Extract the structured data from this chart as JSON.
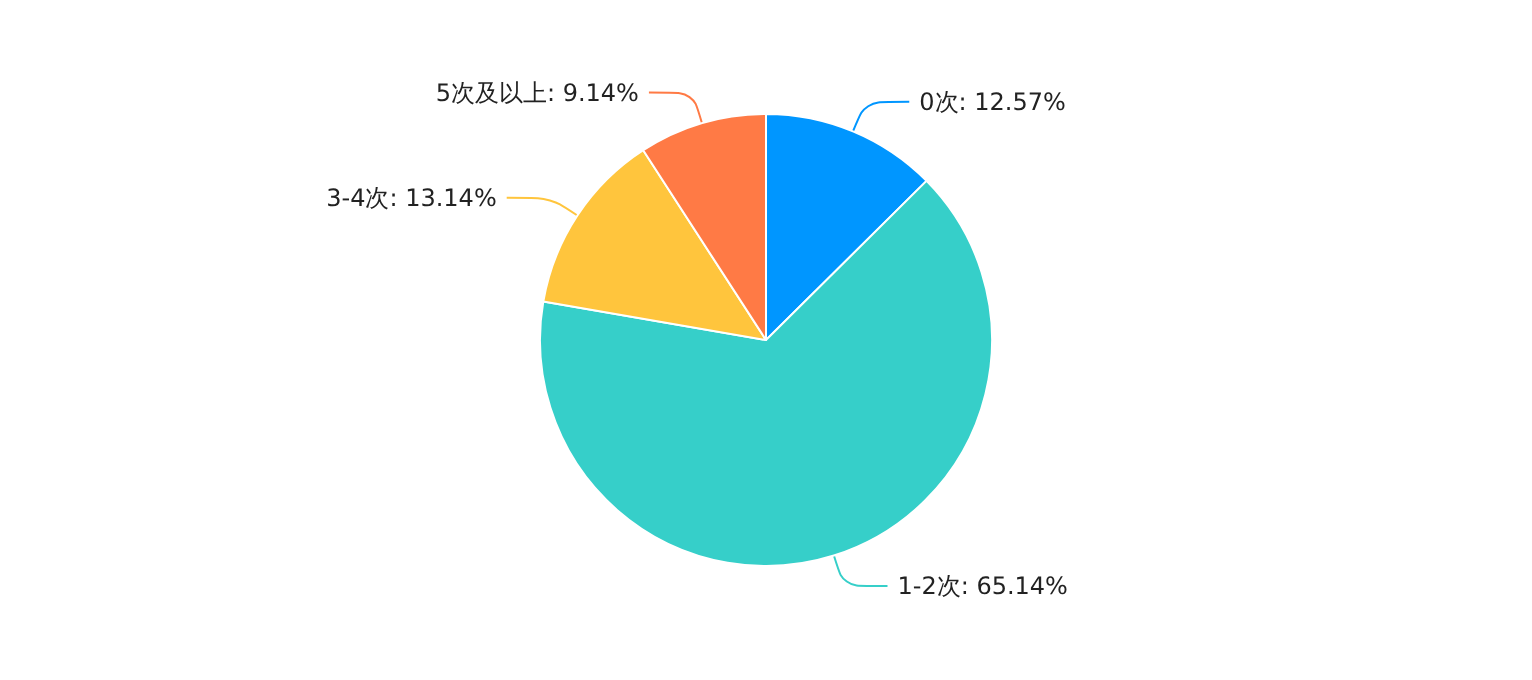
{
  "chart_data": {
    "type": "pie",
    "categories": [
      "0次",
      "1-2次",
      "3-4次",
      "5次及以上"
    ],
    "values": [
      12.57,
      65.14,
      13.14,
      9.14
    ],
    "value_labels": [
      "12.57%",
      "65.14%",
      "13.14%",
      "9.14%"
    ],
    "colors": [
      "#0096ff",
      "#36cfc9",
      "#ffc53d",
      "#ff7a45"
    ]
  }
}
